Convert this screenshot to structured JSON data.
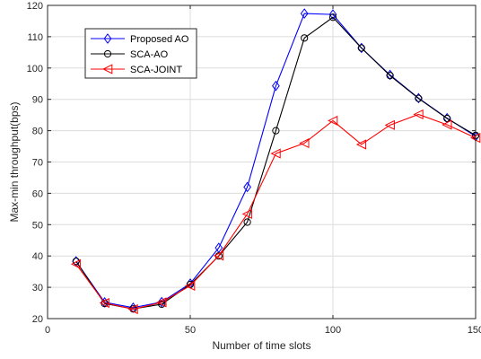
{
  "chart_data": {
    "type": "line",
    "xlabel": "Number of time slots",
    "ylabel": "Max-min throughput(bps)",
    "xlim": [
      0,
      150
    ],
    "ylim": [
      20,
      120
    ],
    "xticks": [
      0,
      50,
      100,
      150
    ],
    "yticks": [
      20,
      30,
      40,
      50,
      60,
      70,
      80,
      90,
      100,
      110,
      120
    ],
    "grid": true,
    "legend_position": "top-left",
    "x": [
      10,
      20,
      30,
      40,
      50,
      60,
      70,
      80,
      90,
      100,
      110,
      120,
      130,
      140,
      150
    ],
    "series": [
      {
        "name": "Proposed AO",
        "color": "#0000ff",
        "marker": "diamond",
        "values": [
          38.3,
          25.2,
          23.5,
          25.3,
          31.2,
          42.6,
          62.0,
          94.3,
          117.4,
          117.1,
          106.4,
          97.8,
          90.4,
          84.0,
          78.2
        ]
      },
      {
        "name": "SCA-AO",
        "color": "#000000",
        "marker": "circle",
        "values": [
          38.3,
          24.8,
          23.1,
          24.6,
          30.9,
          40.0,
          50.8,
          80.0,
          109.6,
          116.2,
          106.4,
          97.6,
          90.3,
          83.9,
          78.5
        ]
      },
      {
        "name": "SCA-JOINT",
        "color": "#ff0000",
        "marker": "triangle-left",
        "values": [
          37.4,
          25.0,
          23.0,
          25.2,
          30.5,
          40.1,
          53.4,
          72.7,
          76.0,
          83.2,
          75.6,
          81.8,
          85.2,
          81.9,
          77.7
        ]
      }
    ]
  }
}
